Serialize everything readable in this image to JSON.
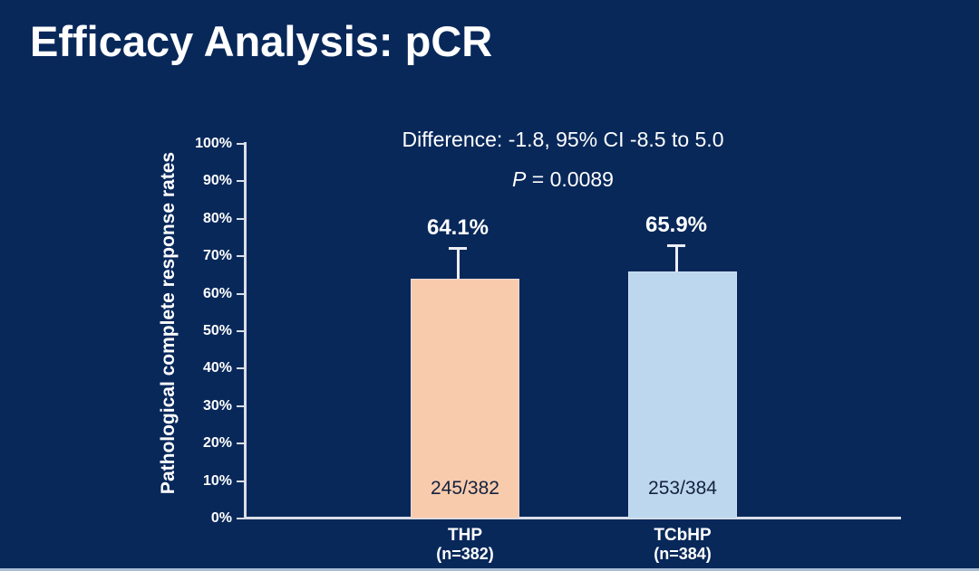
{
  "slide": {
    "title": "Efficacy Analysis: pCR"
  },
  "annotation": {
    "p_symbol": "P",
    "p_rest": " = 0.0089"
  },
  "chart_data": {
    "type": "bar",
    "title": "Efficacy Analysis: pCR",
    "xlabel": "",
    "ylabel": "Pathological complete response rates",
    "ylim": [
      0,
      100
    ],
    "ytick_step": 10,
    "ytick_labels": [
      "0%",
      "10%",
      "20%",
      "30%",
      "40%",
      "50%",
      "60%",
      "70%",
      "80%",
      "90%",
      "100%"
    ],
    "grid": false,
    "legend": "none",
    "categories": [
      {
        "name": "THP",
        "n_label": "(n=382)"
      },
      {
        "name": "TCbHP",
        "n_label": "(n=384)"
      }
    ],
    "values": [
      64.1,
      65.9
    ],
    "value_labels": [
      "64.1%",
      "65.9%"
    ],
    "fractions": [
      "245/382",
      "253/384"
    ],
    "error_bars": [
      {
        "lower": 58.2,
        "upper": 72.4
      },
      {
        "lower": 58.9,
        "upper": 73.2
      }
    ],
    "bar_colors": [
      "#F8CBAD",
      "#BDD7EE"
    ],
    "annotations": [
      "Difference: -1.8, 95% CI -8.5 to 5.0",
      "P = 0.0089"
    ]
  },
  "colors": {
    "background": "#08285A",
    "axis": "#D9DEE7",
    "error_bar": "#EDEFF4",
    "text": "#FFFFFF",
    "fraction_text": "#14223E",
    "bottom_edge": "#A9BDD3"
  }
}
